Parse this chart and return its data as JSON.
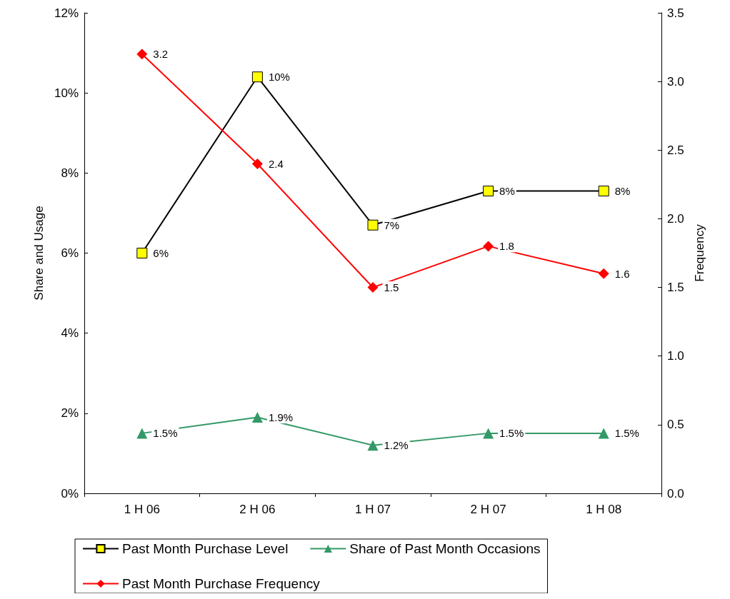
{
  "chart_data": {
    "type": "line",
    "categories": [
      "1 H 06",
      "2 H 06",
      "1 H 07",
      "2 H 07",
      "1 H 08"
    ],
    "ylabel": "Share and Usage",
    "y2label": "Frequency",
    "ylim": [
      0,
      12
    ],
    "yticks": [
      {
        "value": 0,
        "label": "0%"
      },
      {
        "value": 2,
        "label": "2%"
      },
      {
        "value": 4,
        "label": "4%"
      },
      {
        "value": 6,
        "label": "6%"
      },
      {
        "value": 8,
        "label": "8%"
      },
      {
        "value": 10,
        "label": "10%"
      },
      {
        "value": 12,
        "label": "12%"
      }
    ],
    "y2lim": [
      0,
      3.5
    ],
    "y2ticks": [
      {
        "value": 0,
        "label": "0.0"
      },
      {
        "value": 0.5,
        "label": "0.5"
      },
      {
        "value": 1,
        "label": "1.0"
      },
      {
        "value": 1.5,
        "label": "1.5"
      },
      {
        "value": 2,
        "label": "2.0"
      },
      {
        "value": 2.5,
        "label": "2.5"
      },
      {
        "value": 3,
        "label": "3.0"
      },
      {
        "value": 3.5,
        "label": "3.5"
      }
    ],
    "grid": false,
    "legend": "bottom",
    "line_style": "solid",
    "series": [
      {
        "name": "Past Month Purchase Level",
        "color": "#000000",
        "marker": "square",
        "values": [
          6.0,
          10.4,
          6.7,
          7.55,
          7.55
        ],
        "value_labels": [
          "6%",
          "10%",
          "7%",
          "8%",
          "8%"
        ]
      },
      {
        "name": "Share of Past Month Occasions",
        "color": "#339966",
        "marker": "triangle",
        "values": [
          1.5,
          1.9,
          1.2,
          1.5,
          1.5
        ],
        "value_labels": [
          "1.5%",
          "1.9%",
          "1.2%",
          "1.5%",
          "1.5%"
        ]
      },
      {
        "name": "Past Month Purchase Frequency",
        "color": "#ff0000",
        "marker": "diamond",
        "axis": "y2",
        "values": [
          3.2,
          2.4,
          1.5,
          1.8,
          1.6
        ],
        "value_labels": [
          "3.2",
          "2.4",
          "1.5",
          "1.8",
          "1.6"
        ]
      }
    ]
  }
}
